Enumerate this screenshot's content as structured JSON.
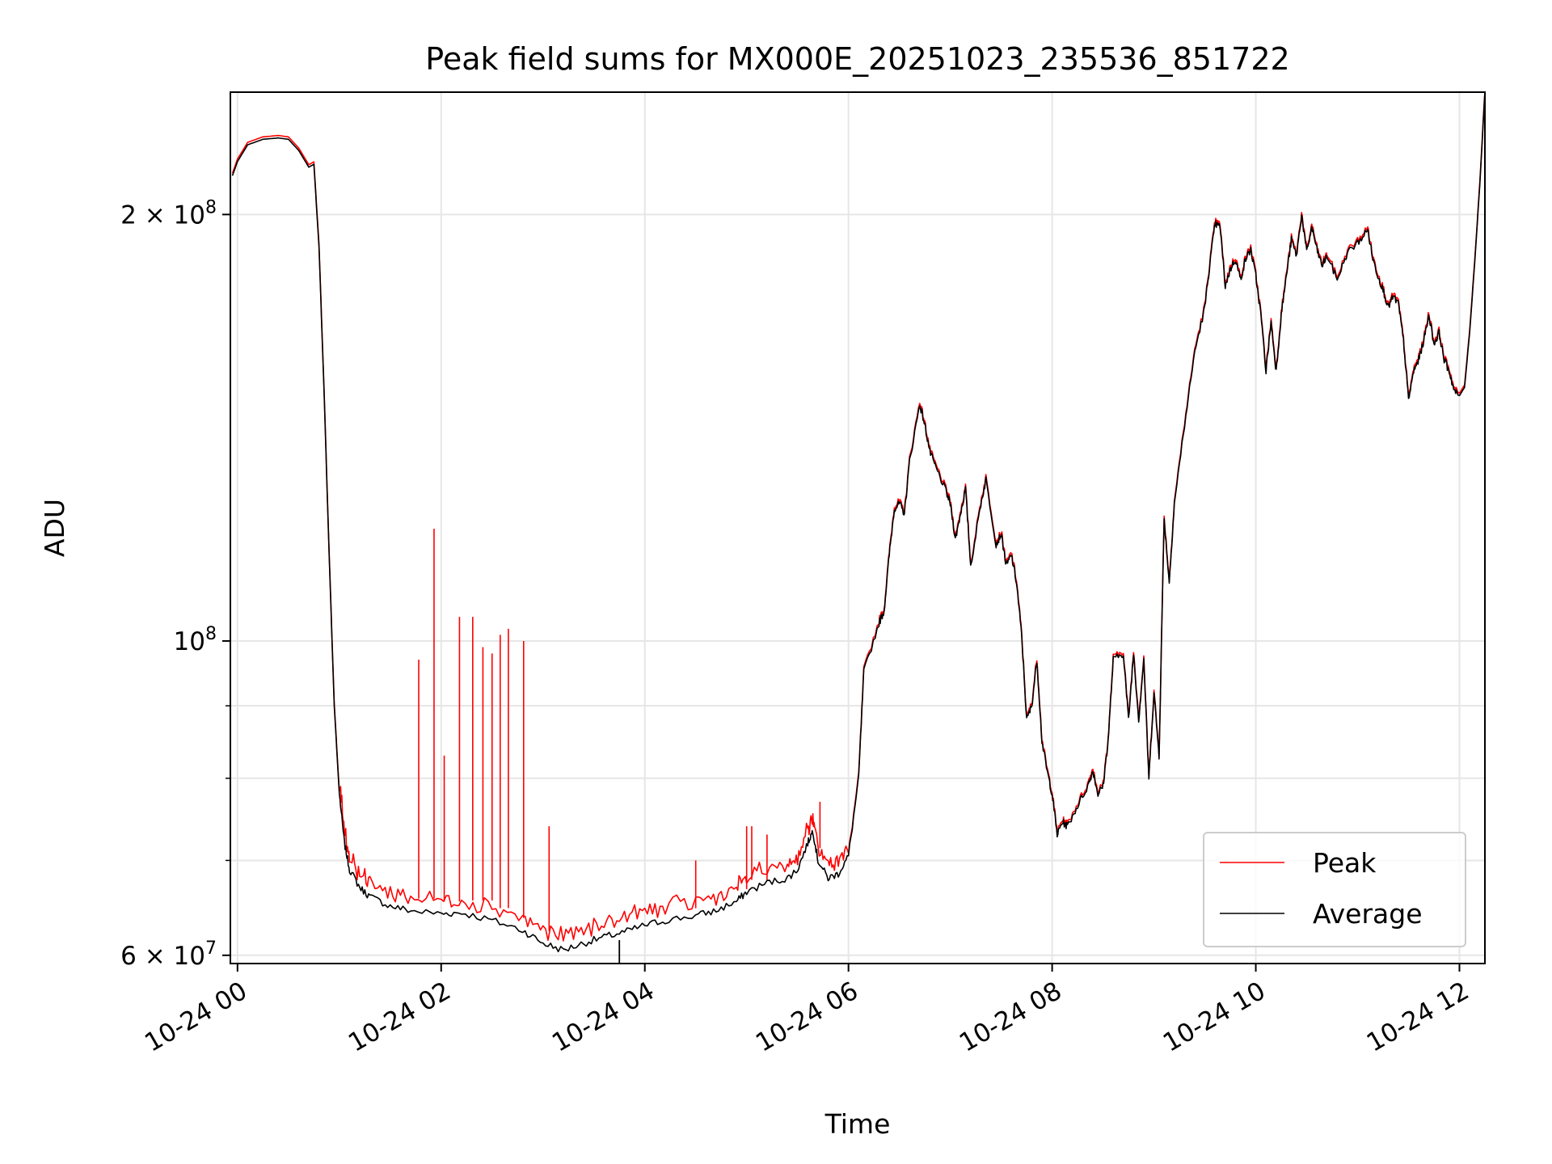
{
  "chart_data": {
    "type": "line",
    "title": "Peak field sums for MX000E_20251023_235536_851722",
    "xlabel": "Time",
    "ylabel": "ADU",
    "yscale": "log",
    "xlim_hours": [
      -0.07,
      12.25
    ],
    "ylim": [
      59200000,
      244000000
    ],
    "grid": true,
    "legend_position": "lower right",
    "x_ticks": [
      {
        "hour": 0,
        "label": "10-24 00"
      },
      {
        "hour": 2,
        "label": "10-24 02"
      },
      {
        "hour": 4,
        "label": "10-24 04"
      },
      {
        "hour": 6,
        "label": "10-24 06"
      },
      {
        "hour": 8,
        "label": "10-24 08"
      },
      {
        "hour": 10,
        "label": "10-24 10"
      },
      {
        "hour": 12,
        "label": "10-24 12"
      }
    ],
    "y_major_ticks": [
      {
        "value": 60000000,
        "base": "6",
        "exp": "7",
        "prefix": "6 × 10"
      },
      {
        "value": 100000000,
        "base": "",
        "exp": "8",
        "prefix": "10"
      },
      {
        "value": 200000000,
        "base": "2",
        "exp": "8",
        "prefix": "2 × 10"
      }
    ],
    "y_minor_ticks": [
      70000000,
      80000000,
      90000000
    ],
    "x_unit": "hours since 2025-10-24 00:00",
    "series": [
      {
        "name": "Average",
        "color": "#000000",
        "points": [
          [
            -0.05,
            213000000
          ],
          [
            0.0,
            218000000
          ],
          [
            0.1,
            224000000
          ],
          [
            0.25,
            226000000
          ],
          [
            0.4,
            226500000
          ],
          [
            0.5,
            226000000
          ],
          [
            0.6,
            222000000
          ],
          [
            0.7,
            216000000
          ],
          [
            0.75,
            217000000
          ],
          [
            0.8,
            190000000
          ],
          [
            0.85,
            150000000
          ],
          [
            0.9,
            115000000
          ],
          [
            0.95,
            90000000
          ],
          [
            1.0,
            78000000
          ],
          [
            1.05,
            72000000
          ],
          [
            1.1,
            69000000
          ],
          [
            1.2,
            67000000
          ],
          [
            1.3,
            66000000
          ],
          [
            1.5,
            65000000
          ],
          [
            1.7,
            64500000
          ],
          [
            2.0,
            64200000
          ],
          [
            2.2,
            64300000
          ],
          [
            2.5,
            63500000
          ],
          [
            2.8,
            62500000
          ],
          [
            3.0,
            61200000
          ],
          [
            3.2,
            60500000
          ],
          [
            3.4,
            61200000
          ],
          [
            3.6,
            61800000
          ],
          [
            3.8,
            62300000
          ],
          [
            4.0,
            63000000
          ],
          [
            4.2,
            63500000
          ],
          [
            4.5,
            64000000
          ],
          [
            4.7,
            64500000
          ],
          [
            4.9,
            65500000
          ],
          [
            5.0,
            66500000
          ],
          [
            5.2,
            67500000
          ],
          [
            5.4,
            68000000
          ],
          [
            5.5,
            69000000
          ],
          [
            5.6,
            72000000
          ],
          [
            5.65,
            73500000
          ],
          [
            5.7,
            70000000
          ],
          [
            5.8,
            68000000
          ],
          [
            5.9,
            68500000
          ],
          [
            6.0,
            70500000
          ],
          [
            6.1,
            80000000
          ],
          [
            6.15,
            95000000
          ],
          [
            6.3,
            103000000
          ],
          [
            6.35,
            105000000
          ],
          [
            6.4,
            115000000
          ],
          [
            6.45,
            124000000
          ],
          [
            6.5,
            125000000
          ],
          [
            6.55,
            123000000
          ],
          [
            6.6,
            134000000
          ],
          [
            6.7,
            147000000
          ],
          [
            6.75,
            142000000
          ],
          [
            6.8,
            136000000
          ],
          [
            6.85,
            133000000
          ],
          [
            6.95,
            128000000
          ],
          [
            7.0,
            125000000
          ],
          [
            7.05,
            118000000
          ],
          [
            7.1,
            123000000
          ],
          [
            7.15,
            128000000
          ],
          [
            7.2,
            113000000
          ],
          [
            7.3,
            125000000
          ],
          [
            7.35,
            130000000
          ],
          [
            7.45,
            117000000
          ],
          [
            7.5,
            119000000
          ],
          [
            7.55,
            113000000
          ],
          [
            7.6,
            115000000
          ],
          [
            7.65,
            110000000
          ],
          [
            7.7,
            101000000
          ],
          [
            7.75,
            88000000
          ],
          [
            7.8,
            90000000
          ],
          [
            7.85,
            97000000
          ],
          [
            7.9,
            85000000
          ],
          [
            7.95,
            81000000
          ],
          [
            8.0,
            78000000
          ],
          [
            8.05,
            73000000
          ],
          [
            8.1,
            74500000
          ],
          [
            8.15,
            74000000
          ],
          [
            8.25,
            76500000
          ],
          [
            8.35,
            79000000
          ],
          [
            8.4,
            81000000
          ],
          [
            8.45,
            78000000
          ],
          [
            8.5,
            79000000
          ],
          [
            8.55,
            85000000
          ],
          [
            8.6,
            97000000
          ],
          [
            8.7,
            98000000
          ],
          [
            8.75,
            88000000
          ],
          [
            8.8,
            98000000
          ],
          [
            8.85,
            88000000
          ],
          [
            8.9,
            97000000
          ],
          [
            8.95,
            80000000
          ],
          [
            9.0,
            92000000
          ],
          [
            9.05,
            83000000
          ],
          [
            9.1,
            122000000
          ],
          [
            9.15,
            110000000
          ],
          [
            9.2,
            125000000
          ],
          [
            9.3,
            142000000
          ],
          [
            9.4,
            160000000
          ],
          [
            9.5,
            172000000
          ],
          [
            9.55,
            185000000
          ],
          [
            9.6,
            197000000
          ],
          [
            9.65,
            196000000
          ],
          [
            9.7,
            178000000
          ],
          [
            9.75,
            183000000
          ],
          [
            9.8,
            186000000
          ],
          [
            9.85,
            180000000
          ],
          [
            9.9,
            186000000
          ],
          [
            9.95,
            189000000
          ],
          [
            10.0,
            181000000
          ],
          [
            10.05,
            170000000
          ],
          [
            10.1,
            155000000
          ],
          [
            10.15,
            168000000
          ],
          [
            10.2,
            155000000
          ],
          [
            10.25,
            170000000
          ],
          [
            10.3,
            181000000
          ],
          [
            10.35,
            192000000
          ],
          [
            10.4,
            187000000
          ],
          [
            10.45,
            200000000
          ],
          [
            10.5,
            188000000
          ],
          [
            10.55,
            196000000
          ],
          [
            10.6,
            189000000
          ],
          [
            10.65,
            184000000
          ],
          [
            10.7,
            187000000
          ],
          [
            10.8,
            180000000
          ],
          [
            10.9,
            188000000
          ],
          [
            11.0,
            191000000
          ],
          [
            11.1,
            195000000
          ],
          [
            11.15,
            186000000
          ],
          [
            11.2,
            181000000
          ],
          [
            11.25,
            177000000
          ],
          [
            11.3,
            172000000
          ],
          [
            11.35,
            175000000
          ],
          [
            11.4,
            173000000
          ],
          [
            11.45,
            163000000
          ],
          [
            11.5,
            148000000
          ],
          [
            11.55,
            155000000
          ],
          [
            11.6,
            158000000
          ],
          [
            11.65,
            163000000
          ],
          [
            11.7,
            170000000
          ],
          [
            11.75,
            162000000
          ],
          [
            11.8,
            165000000
          ],
          [
            11.85,
            158000000
          ],
          [
            11.9,
            155000000
          ],
          [
            11.95,
            150000000
          ],
          [
            12.0,
            149000000
          ],
          [
            12.05,
            151000000
          ],
          [
            12.1,
            165000000
          ],
          [
            12.15,
            185000000
          ],
          [
            12.2,
            210000000
          ],
          [
            12.25,
            244000000
          ]
        ]
      },
      {
        "name": "Peak",
        "color": "#ff0000",
        "spikes": [
          [
            1.78,
            97000000
          ],
          [
            1.93,
            120000000
          ],
          [
            2.03,
            83000000
          ],
          [
            2.18,
            104000000
          ],
          [
            2.31,
            104000000
          ],
          [
            2.41,
            99000000
          ],
          [
            2.5,
            98000000
          ],
          [
            2.58,
            101000000
          ],
          [
            2.66,
            102000000
          ],
          [
            2.81,
            100000000
          ],
          [
            3.06,
            74000000
          ],
          [
            4.5,
            70000000
          ],
          [
            5.0,
            74000000
          ],
          [
            5.05,
            74000000
          ],
          [
            5.2,
            73000000
          ],
          [
            5.72,
            77000000
          ]
        ]
      }
    ]
  }
}
